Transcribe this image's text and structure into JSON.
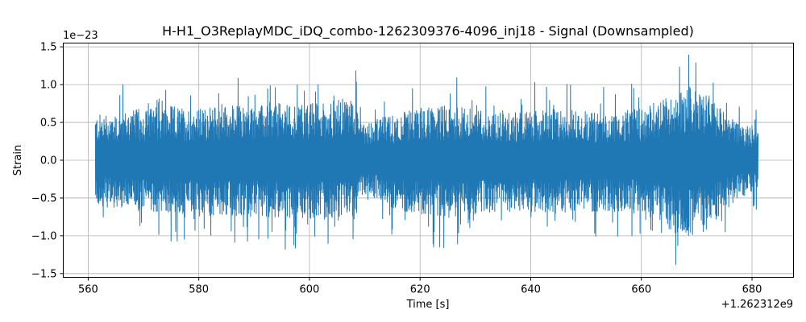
{
  "chart_data": {
    "type": "line",
    "title": "H-H1_O3ReplayMDC_iDQ_combo-1262309376-4096_inj18 - Signal (Downsampled)",
    "xlabel": "Time [s]",
    "ylabel": "Strain",
    "x_offset_label": "+1.262312e9",
    "y_scale_label": "1e−23",
    "xlim": [
      555.5,
      687.5
    ],
    "ylim": [
      -1.55,
      1.55
    ],
    "x_ticks": [
      560,
      580,
      600,
      620,
      640,
      660,
      680
    ],
    "x_tick_labels": [
      "560",
      "580",
      "600",
      "620",
      "640",
      "660",
      "680"
    ],
    "y_ticks": [
      -1.5,
      -1.0,
      -0.5,
      0.0,
      0.5,
      1.0,
      1.5
    ],
    "y_tick_labels": [
      "−1.5",
      "−1.0",
      "−0.5",
      "0.0",
      "0.5",
      "1.0",
      "1.5"
    ],
    "grid": true,
    "line_color": "#1f77b4",
    "series": [
      {
        "x_range": [
          561.3,
          681.1
        ],
        "envelope_upper": [
          [
            561.3,
            0.75
          ],
          [
            565,
            0.8
          ],
          [
            570,
            0.85
          ],
          [
            575,
            0.9
          ],
          [
            580,
            0.85
          ],
          [
            585,
            0.92
          ],
          [
            590,
            0.9
          ],
          [
            595,
            0.93
          ],
          [
            600,
            0.95
          ],
          [
            605,
            1.0
          ],
          [
            608,
            1.05
          ],
          [
            610,
            0.65
          ],
          [
            615,
            0.75
          ],
          [
            620,
            0.88
          ],
          [
            625,
            0.92
          ],
          [
            630,
            0.85
          ],
          [
            635,
            0.8
          ],
          [
            640,
            0.82
          ],
          [
            645,
            0.85
          ],
          [
            650,
            0.82
          ],
          [
            655,
            0.8
          ],
          [
            660,
            0.85
          ],
          [
            663,
            1.0
          ],
          [
            666,
            1.1
          ],
          [
            669,
            1.25
          ],
          [
            672,
            1.1
          ],
          [
            675,
            0.8
          ],
          [
            678,
            0.6
          ],
          [
            681.1,
            0.6
          ]
        ],
        "envelope_lower": [
          [
            561.3,
            -0.75
          ],
          [
            565,
            -0.8
          ],
          [
            570,
            -0.85
          ],
          [
            575,
            -0.9
          ],
          [
            580,
            -0.9
          ],
          [
            585,
            -0.95
          ],
          [
            590,
            -0.92
          ],
          [
            595,
            -0.95
          ],
          [
            600,
            -0.98
          ],
          [
            605,
            -1.0
          ],
          [
            608,
            -1.0
          ],
          [
            610,
            -0.55
          ],
          [
            615,
            -0.8
          ],
          [
            620,
            -0.9
          ],
          [
            625,
            -0.95
          ],
          [
            630,
            -0.9
          ],
          [
            635,
            -0.85
          ],
          [
            640,
            -0.85
          ],
          [
            645,
            -0.9
          ],
          [
            650,
            -0.85
          ],
          [
            655,
            -0.85
          ],
          [
            660,
            -0.9
          ],
          [
            663,
            -1.05
          ],
          [
            666,
            -1.2
          ],
          [
            669,
            -1.3
          ],
          [
            672,
            -1.15
          ],
          [
            675,
            -0.85
          ],
          [
            678,
            -0.6
          ],
          [
            681.1,
            -0.55
          ]
        ]
      }
    ]
  }
}
